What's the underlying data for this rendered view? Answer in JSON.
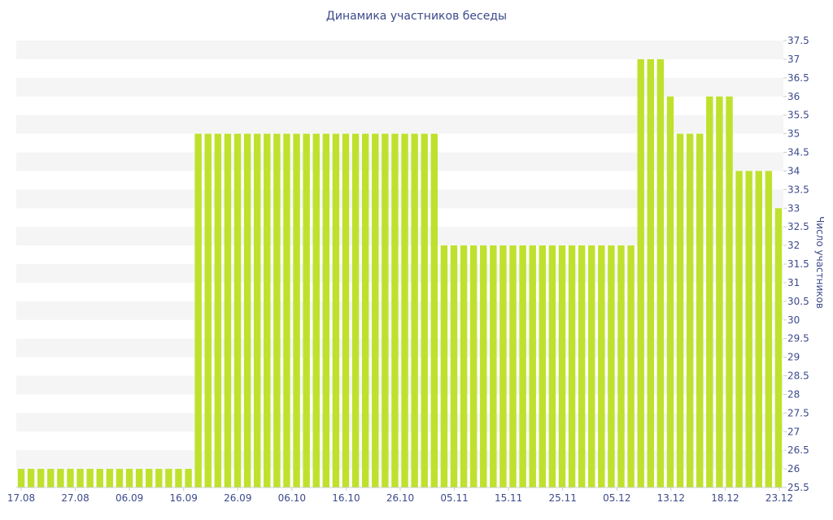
{
  "chart_data": {
    "type": "bar",
    "title": "Динамика участников беседы",
    "ylabel": "Число участников",
    "xlabel": "",
    "ylim": [
      25.5,
      37.5
    ],
    "y_axis_side": "right",
    "grid": "alternating horizontal bands",
    "bar_color": "#bfe12e",
    "band_color": "#f5f5f5",
    "text_color": "#3c4a8c",
    "y_ticks": [
      "25.5",
      "26",
      "26.5",
      "27",
      "27.5",
      "28",
      "28.5",
      "29",
      "29.5",
      "30",
      "30.5",
      "31",
      "31.5",
      "32",
      "32.5",
      "33",
      "33.5",
      "34",
      "34.5",
      "35",
      "35.5",
      "36",
      "36.5",
      "37",
      "37.5"
    ],
    "x_ticks": [
      "17.08",
      "27.08",
      "06.09",
      "16.09",
      "26.09",
      "06.10",
      "16.10",
      "26.10",
      "05.11",
      "15.11",
      "25.11",
      "05.12",
      "13.12",
      "18.12",
      "23.12"
    ],
    "values": [
      26,
      26,
      26,
      26,
      26,
      26,
      26,
      26,
      26,
      26,
      26,
      26,
      26,
      26,
      26,
      26,
      26,
      26,
      35,
      35,
      35,
      35,
      35,
      35,
      35,
      35,
      35,
      35,
      35,
      35,
      35,
      35,
      35,
      35,
      35,
      35,
      35,
      35,
      35,
      35,
      35,
      35,
      35,
      32,
      32,
      32,
      32,
      32,
      32,
      32,
      32,
      32,
      32,
      32,
      32,
      32,
      32,
      32,
      32,
      32,
      32,
      32,
      32,
      37,
      37,
      37,
      36,
      35,
      35,
      35,
      36,
      36,
      36,
      34,
      34,
      34,
      34,
      33
    ]
  }
}
